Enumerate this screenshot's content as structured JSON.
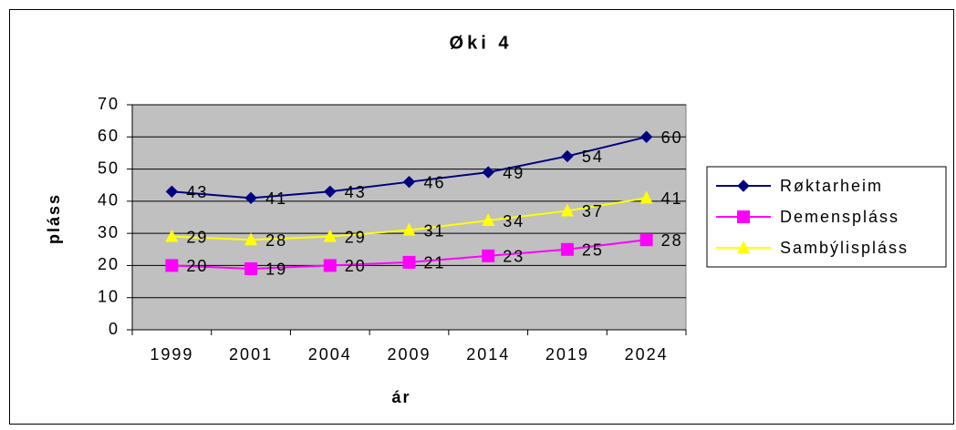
{
  "chart_data": {
    "type": "line",
    "title": "Øki 4",
    "x_label": "ár",
    "y_label": "pláss",
    "categories": [
      "1999",
      "2001",
      "2004",
      "2009",
      "2014",
      "2019",
      "2024"
    ],
    "series": [
      {
        "name": "Røktarheim",
        "color": "#000080",
        "marker": "diamond",
        "values": [
          43,
          41,
          43,
          46,
          49,
          54,
          60
        ]
      },
      {
        "name": "Demenspláss",
        "color": "#ff00ff",
        "marker": "square",
        "values": [
          20,
          19,
          20,
          21,
          23,
          25,
          28
        ]
      },
      {
        "name": "Sambýlispláss",
        "color": "#ffff00",
        "marker": "triangle",
        "values": [
          29,
          28,
          29,
          31,
          34,
          37,
          41
        ]
      }
    ],
    "ylim": [
      0,
      70
    ],
    "yticks": [
      0,
      10,
      20,
      30,
      40,
      50,
      60,
      70
    ],
    "grid": true,
    "legend": "right"
  }
}
